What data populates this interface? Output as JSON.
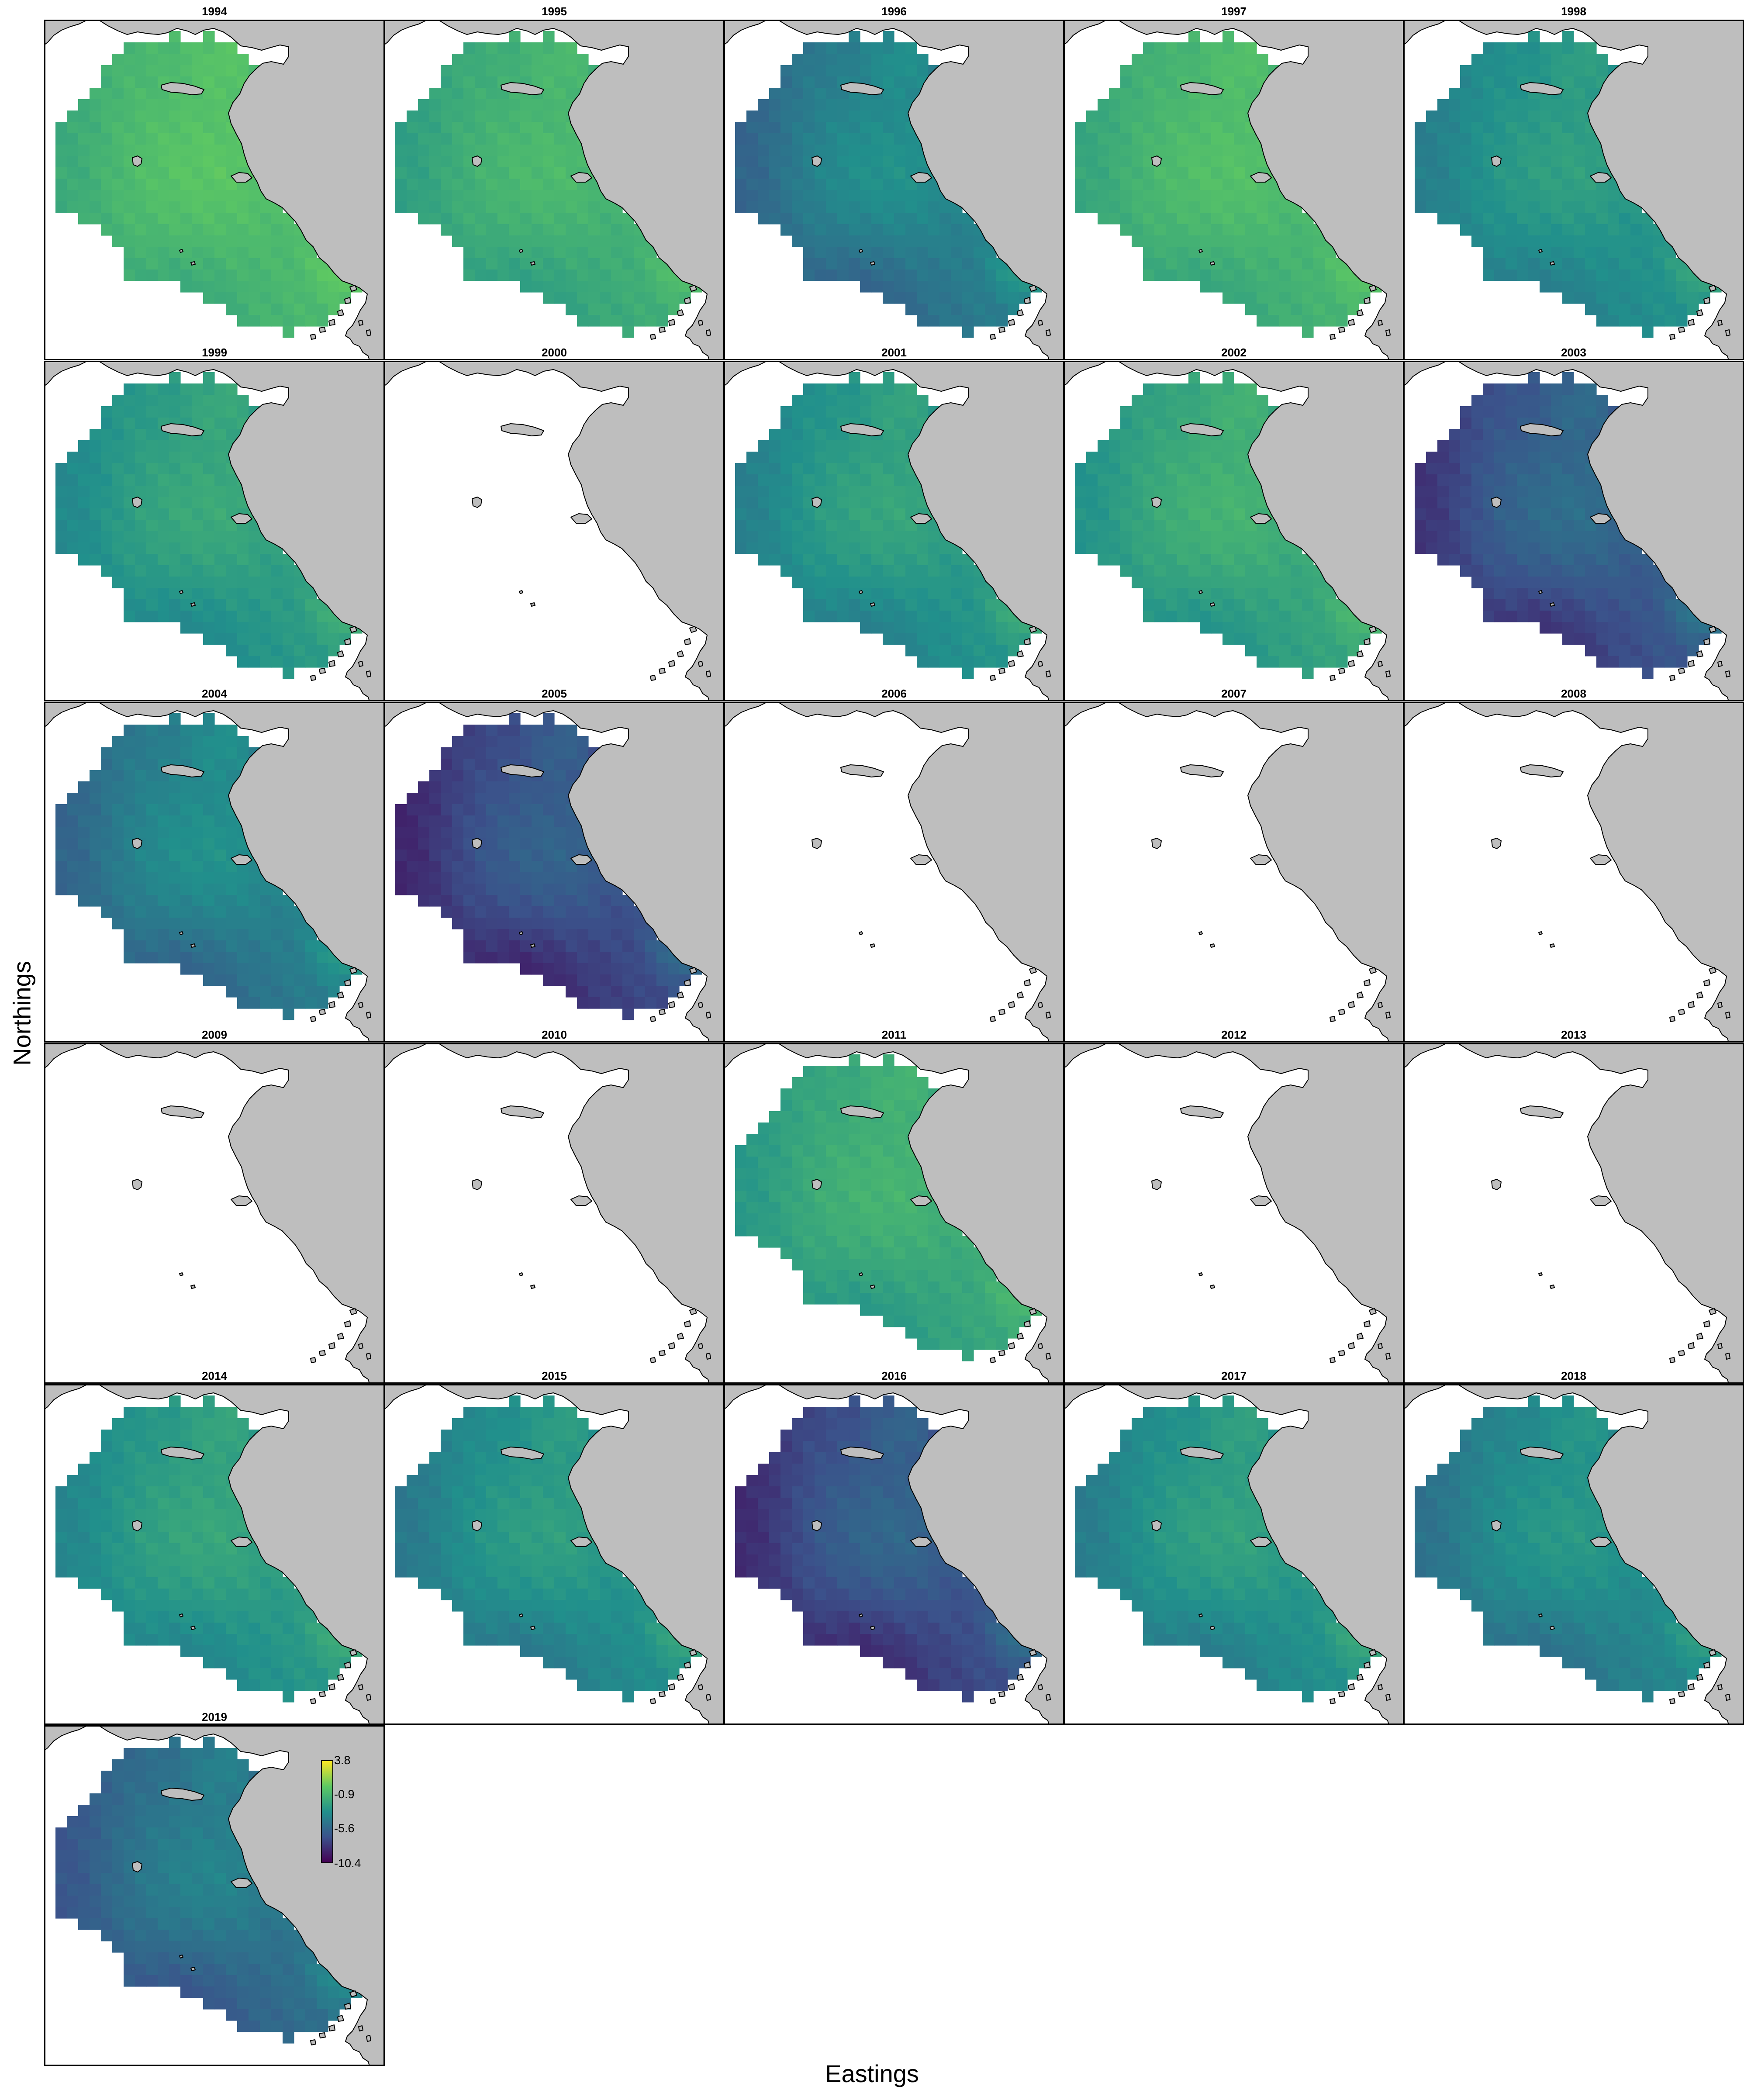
{
  "figure": {
    "xlabel": "Eastings",
    "ylabel": "Northings"
  },
  "colors": {
    "land": "#bebebe",
    "coastline": "#000000",
    "frame": "#000000",
    "background": "#ffffff",
    "scale": [
      "#440154",
      "#3b528b",
      "#21908c",
      "#5dc863",
      "#fde725"
    ]
  },
  "legend": {
    "title": "",
    "min": -10.4,
    "max": 3.8,
    "ticks": [
      "3.8",
      "-0.9",
      "-5.6",
      "-10.4"
    ],
    "tick_values": [
      3.8,
      -0.9,
      -5.6,
      -10.4
    ],
    "placement": "inside panel 2019, upper right",
    "scale": "viridis"
  },
  "panels": [
    {
      "year": "1994",
      "has_data": true,
      "mean": -0.9,
      "gradient": 0.6
    },
    {
      "year": "1995",
      "has_data": true,
      "mean": -1.6,
      "gradient": 0.6
    },
    {
      "year": "1996",
      "has_data": true,
      "mean": -4.6,
      "gradient": 0.9
    },
    {
      "year": "1997",
      "has_data": true,
      "mean": -1.2,
      "gradient": 0.6
    },
    {
      "year": "1998",
      "has_data": true,
      "mean": -3.4,
      "gradient": 0.7
    },
    {
      "year": "1999",
      "has_data": true,
      "mean": -2.8,
      "gradient": 0.7
    },
    {
      "year": "2000",
      "has_data": false
    },
    {
      "year": "2001",
      "has_data": true,
      "mean": -3.2,
      "gradient": 0.8
    },
    {
      "year": "2002",
      "has_data": true,
      "mean": -2.2,
      "gradient": 0.7
    },
    {
      "year": "2003",
      "has_data": true,
      "mean": -6.8,
      "gradient": 1.0
    },
    {
      "year": "2004",
      "has_data": true,
      "mean": -4.6,
      "gradient": 0.9
    },
    {
      "year": "2005",
      "has_data": true,
      "mean": -7.4,
      "gradient": 1.0
    },
    {
      "year": "2006",
      "has_data": false
    },
    {
      "year": "2007",
      "has_data": false
    },
    {
      "year": "2008",
      "has_data": false
    },
    {
      "year": "2009",
      "has_data": false
    },
    {
      "year": "2010",
      "has_data": false
    },
    {
      "year": "2011",
      "has_data": true,
      "mean": -2.0,
      "gradient": 0.6
    },
    {
      "year": "2012",
      "has_data": false
    },
    {
      "year": "2013",
      "has_data": false
    },
    {
      "year": "2014",
      "has_data": true,
      "mean": -3.0,
      "gradient": 0.7
    },
    {
      "year": "2015",
      "has_data": true,
      "mean": -3.6,
      "gradient": 0.8
    },
    {
      "year": "2016",
      "has_data": true,
      "mean": -7.2,
      "gradient": 1.0
    },
    {
      "year": "2017",
      "has_data": true,
      "mean": -3.4,
      "gradient": 0.8
    },
    {
      "year": "2018",
      "has_data": true,
      "mean": -4.0,
      "gradient": 0.8
    },
    {
      "year": "2019",
      "has_data": true,
      "mean": -5.4,
      "gradient": 0.9
    }
  ]
}
